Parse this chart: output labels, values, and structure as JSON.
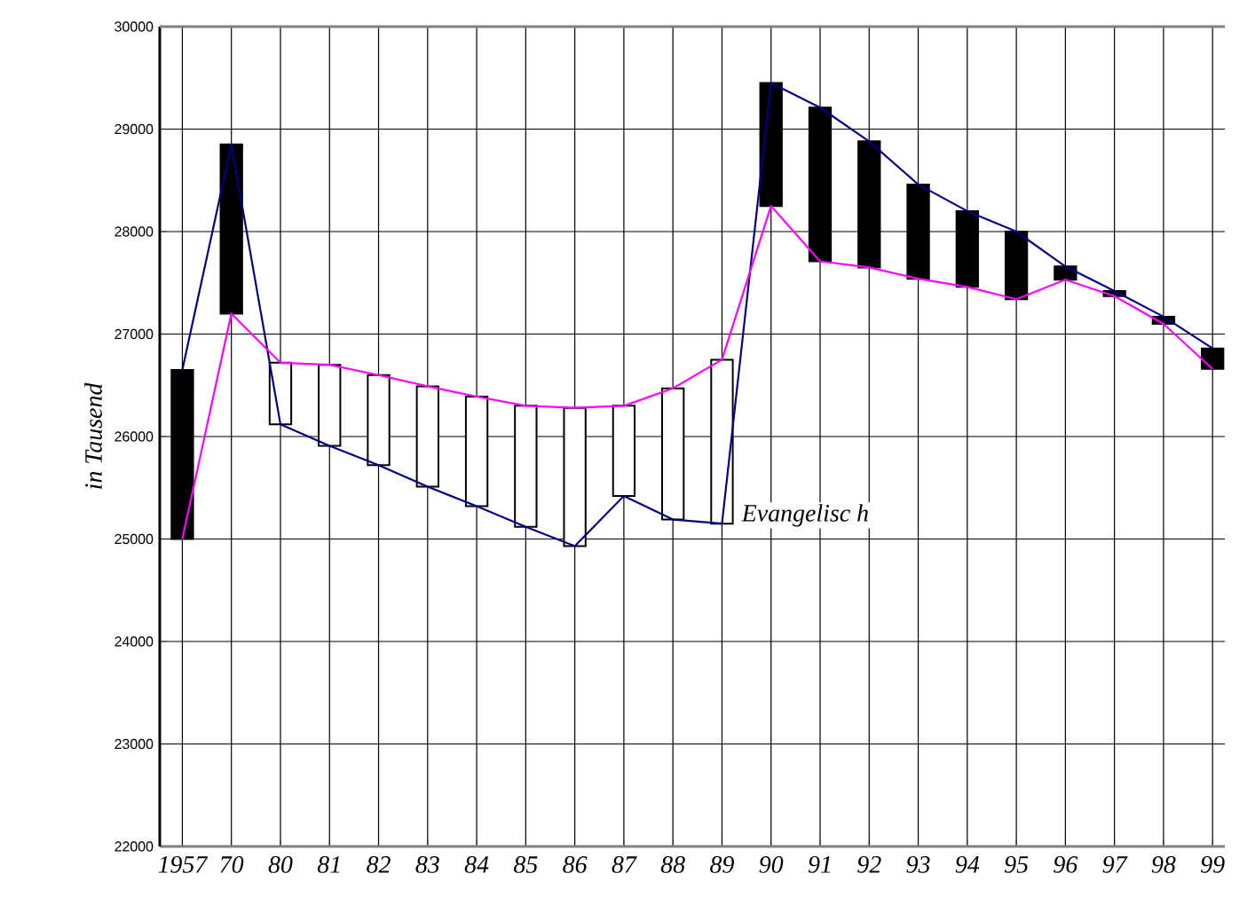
{
  "chart_data": {
    "type": "candlestick",
    "ylabel": "in Tausend",
    "categories": [
      "1957",
      "70",
      "80",
      "81",
      "82",
      "83",
      "84",
      "85",
      "86",
      "87",
      "88",
      "89",
      "90",
      "91",
      "92",
      "93",
      "94",
      "95",
      "96",
      "97",
      "98",
      "99"
    ],
    "ohlc": [
      [
        26650,
        26650,
        25000,
        25000
      ],
      [
        28850,
        28850,
        27200,
        27200
      ],
      [
        26120,
        26720,
        26120,
        26720
      ],
      [
        25910,
        26700,
        25910,
        26700
      ],
      [
        25720,
        26600,
        25720,
        26600
      ],
      [
        25510,
        26490,
        25510,
        26490
      ],
      [
        25320,
        26390,
        25320,
        26390
      ],
      [
        25120,
        26300,
        25120,
        26300
      ],
      [
        24930,
        26280,
        24930,
        26280
      ],
      [
        25420,
        26300,
        25420,
        26300
      ],
      [
        25190,
        26470,
        25190,
        26470
      ],
      [
        25150,
        26750,
        25150,
        26750
      ],
      [
        29450,
        29450,
        28250,
        28250
      ],
      [
        29210,
        29210,
        27710,
        27710
      ],
      [
        28880,
        28880,
        27650,
        27650
      ],
      [
        28460,
        28460,
        27540,
        27540
      ],
      [
        28200,
        28200,
        27460,
        27460
      ],
      [
        28000,
        28000,
        27340,
        27340
      ],
      [
        27660,
        27660,
        27530,
        27530
      ],
      [
        27420,
        27420,
        27370,
        27370
      ],
      [
        27170,
        27170,
        27100,
        27100
      ],
      [
        26860,
        26860,
        26660,
        26660
      ]
    ],
    "series": [
      {
        "type": "line",
        "color": "#000080",
        "values": [
          26650,
          28850,
          26120,
          25910,
          25720,
          25510,
          25320,
          25120,
          24930,
          25420,
          25190,
          25150,
          29450,
          29210,
          28880,
          28460,
          28200,
          28000,
          27660,
          27420,
          27170,
          26860
        ]
      },
      {
        "type": "line",
        "color": "#ff00ff",
        "values": [
          25000,
          27200,
          26720,
          26700,
          26600,
          26490,
          26390,
          26300,
          26280,
          26300,
          26470,
          26750,
          28250,
          27710,
          27650,
          27540,
          27460,
          27340,
          27530,
          27370,
          27100,
          26660
        ]
      }
    ],
    "ylim": [
      22000,
      30000
    ],
    "yticks": [
      22000,
      23000,
      24000,
      25000,
      26000,
      27000,
      28000,
      29000,
      30000
    ],
    "grid": true,
    "annotations": [
      {
        "text": "Evangelisc h",
        "x": "89",
        "y": 25300
      }
    ]
  }
}
